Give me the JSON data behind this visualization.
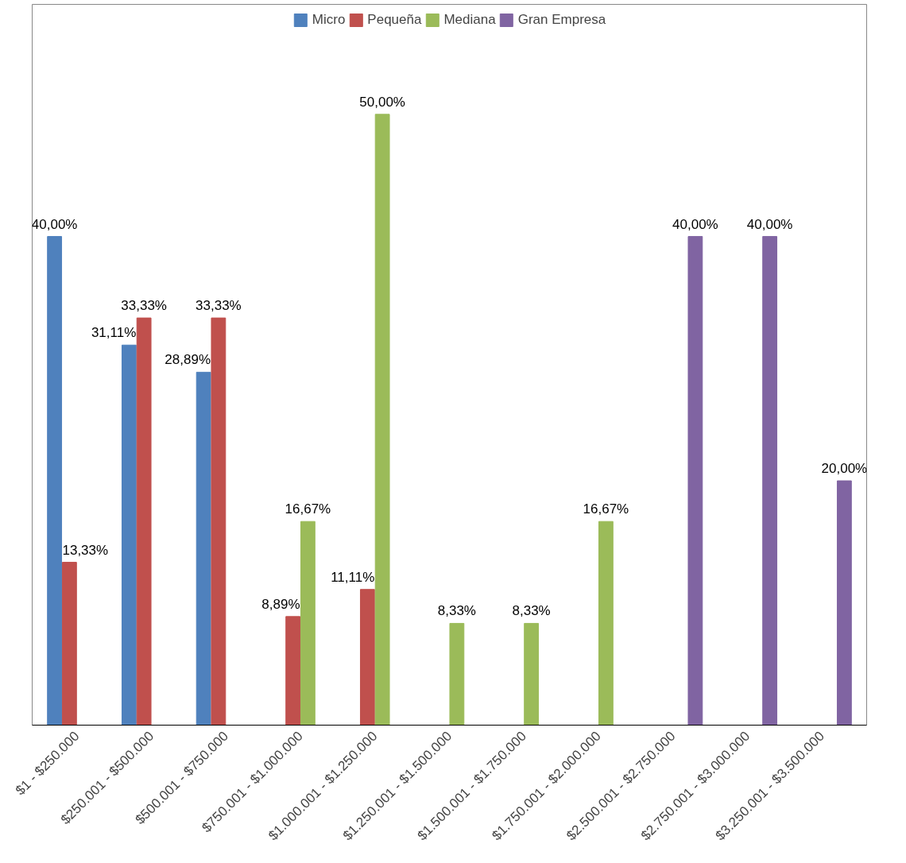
{
  "chart_data": {
    "type": "bar",
    "categories": [
      "$1 - $250.000",
      "$250.001 - $500.000",
      "$500.001 - $750.000",
      "$750.001 - $1.000.000",
      "$1.000.001 - $1.250.000",
      "$1.250.001 - $1.500.000",
      "$1.500.001 - $1.750.000",
      "$1.750.001 - $2.000.000",
      "$2.500.001 - $2.750.000",
      "$2.750.001 - $3.000.000",
      "$3.250.001 - $3.500.000"
    ],
    "series": [
      {
        "name": "Micro",
        "color": "#4f81bd",
        "values": [
          40.0,
          31.11,
          28.89,
          null,
          null,
          null,
          null,
          null,
          null,
          null,
          null
        ],
        "value_labels": [
          "40,00%",
          "31,11%",
          "28,89%",
          null,
          null,
          null,
          null,
          null,
          null,
          null,
          null
        ]
      },
      {
        "name": "Pequeña",
        "color": "#c0504d",
        "values": [
          13.33,
          33.33,
          33.33,
          8.89,
          11.11,
          null,
          null,
          null,
          null,
          null,
          null
        ],
        "value_labels": [
          "13,33%",
          "33,33%",
          "33,33%",
          "8,89%",
          "11,11%",
          null,
          null,
          null,
          null,
          null,
          null
        ]
      },
      {
        "name": "Mediana",
        "color": "#9bbb59",
        "values": [
          null,
          null,
          null,
          16.67,
          50.0,
          8.33,
          8.33,
          16.67,
          null,
          null,
          null
        ],
        "value_labels": [
          null,
          null,
          null,
          "16,67%",
          "50,00%",
          "8,33%",
          "8,33%",
          "16,67%",
          null,
          null,
          null
        ]
      },
      {
        "name": "Gran Empresa",
        "color": "#8064a2",
        "values": [
          null,
          null,
          null,
          null,
          null,
          null,
          null,
          null,
          40.0,
          40.0,
          20.0
        ],
        "value_labels": [
          null,
          null,
          null,
          null,
          null,
          null,
          null,
          null,
          "40,00%",
          "40,00%",
          "20,00%"
        ]
      }
    ],
    "legend": "top",
    "grid": false
  }
}
